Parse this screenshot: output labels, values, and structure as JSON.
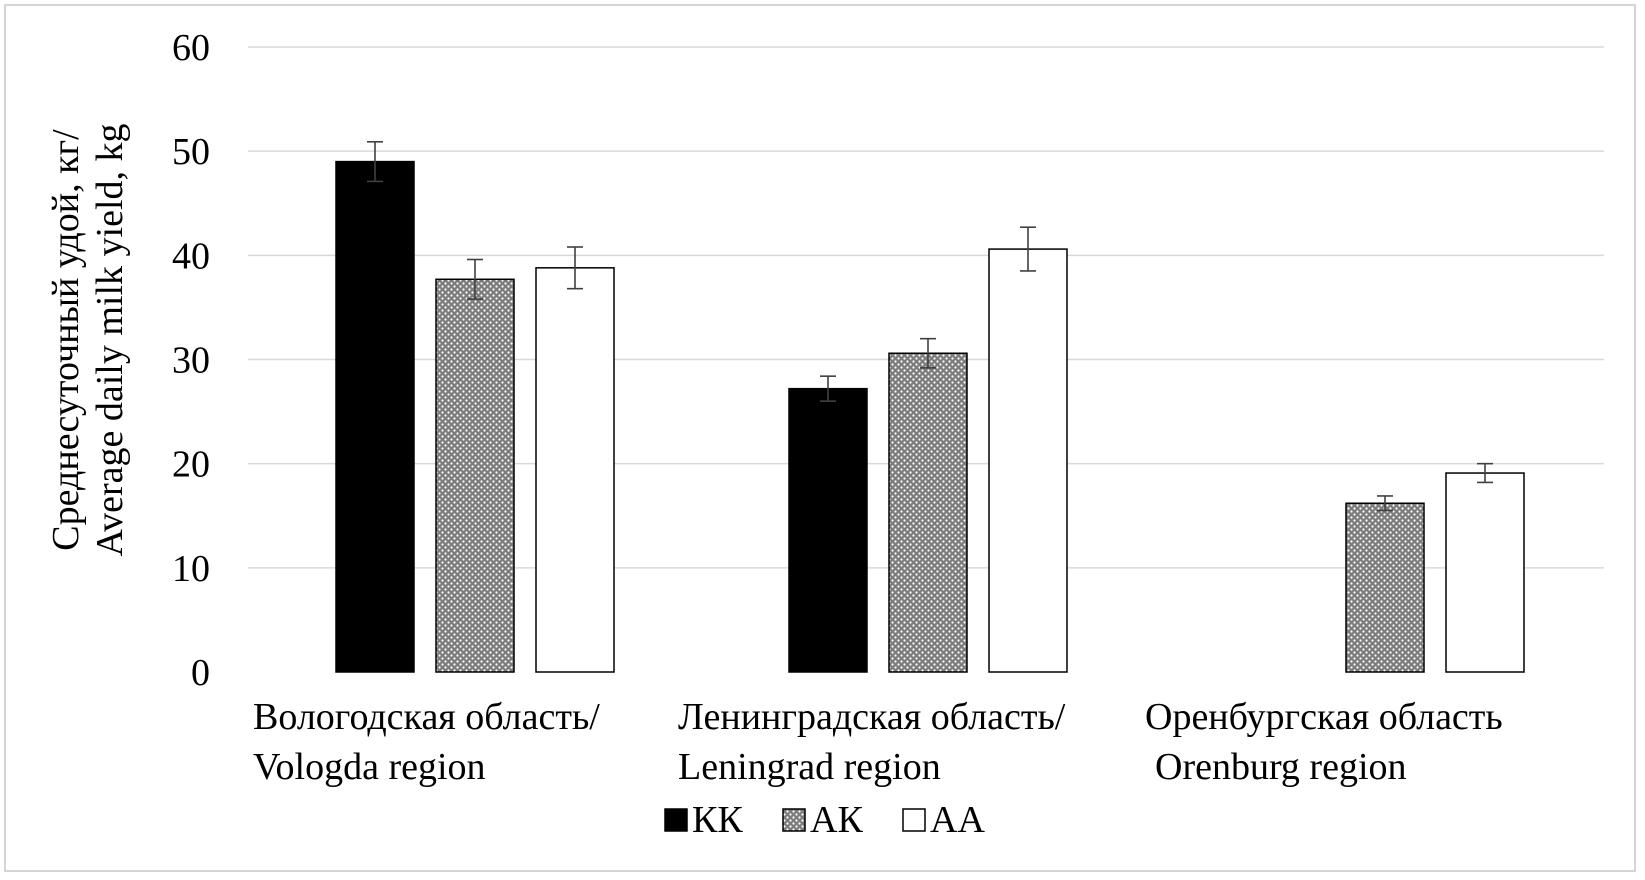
{
  "chart_data": {
    "type": "bar",
    "title": "",
    "ylabel_lines": [
      "Среднесуточный удой, кг/",
      "Average daily milk yield, kg"
    ],
    "ylim": [
      0,
      60
    ],
    "yticks": [
      "0",
      "10",
      "20",
      "30",
      "40",
      "50",
      "60"
    ],
    "grid": true,
    "legend_position": "bottom",
    "categories": [
      [
        "Вологодская область/",
        "Vologda region"
      ],
      [
        "Ленинградская область/",
        "Leningrad region"
      ],
      [
        "Оренбургская область",
        "Orenburg region"
      ]
    ],
    "series": [
      {
        "name": "КК",
        "values": [
          49,
          27.2,
          null
        ],
        "errors": [
          1.9,
          1.2,
          null
        ]
      },
      {
        "name": "АК",
        "values": [
          37.7,
          30.6,
          16.2
        ],
        "errors": [
          1.9,
          1.4,
          0.7
        ]
      },
      {
        "name": "АА",
        "values": [
          38.8,
          40.6,
          19.1
        ],
        "errors": [
          2.0,
          2.1,
          0.9
        ]
      }
    ]
  },
  "colors": {
    "KK": "#000000",
    "AK": "#8a8a8a",
    "AA": "#ffffff",
    "grid": "#d9d9d9",
    "error": "#404040"
  }
}
